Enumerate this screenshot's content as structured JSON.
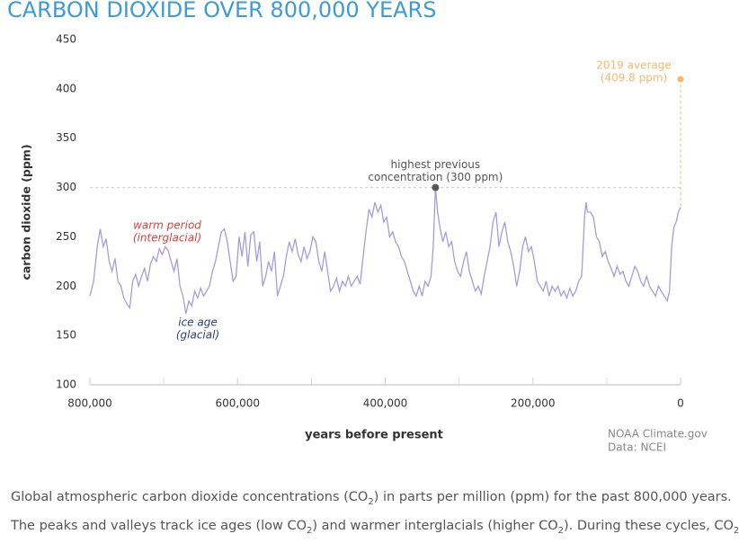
{
  "chart_data": {
    "type": "line",
    "title": "CARBON DIOXIDE OVER 800,000 YEARS",
    "ylabel": "carbon dioxide (ppm)",
    "xlabel": "years before present",
    "source": [
      "NOAA Climate.gov",
      "Data: NCEI"
    ],
    "xlim": [
      800000,
      0
    ],
    "xticks": [
      {
        "value": 800000,
        "label": "800,000"
      },
      {
        "value": 600000,
        "label": "600,000"
      },
      {
        "value": 400000,
        "label": "400,000"
      },
      {
        "value": 200000,
        "label": "200,000"
      },
      0
    ],
    "xminorticks": [
      700000,
      500000,
      300000,
      100000
    ],
    "ylim": [
      100,
      450
    ],
    "yticks": [
      100,
      150,
      200,
      250,
      300,
      350,
      400,
      450
    ],
    "reference_line": 300,
    "x": [
      800000,
      795000,
      790000,
      786000,
      782000,
      778000,
      774000,
      770000,
      766000,
      762000,
      758000,
      754000,
      750000,
      746000,
      742000,
      738000,
      734000,
      730000,
      726000,
      722000,
      718000,
      714000,
      710000,
      706000,
      702000,
      698000,
      694000,
      690000,
      686000,
      682000,
      678000,
      674000,
      670000,
      666000,
      662000,
      658000,
      654000,
      650000,
      646000,
      642000,
      638000,
      634000,
      630000,
      626000,
      622000,
      618000,
      614000,
      610000,
      606000,
      602000,
      598000,
      594000,
      590000,
      586000,
      582000,
      578000,
      574000,
      570000,
      566000,
      562000,
      558000,
      554000,
      550000,
      546000,
      542000,
      538000,
      534000,
      530000,
      526000,
      522000,
      518000,
      514000,
      510000,
      506000,
      502000,
      498000,
      494000,
      490000,
      486000,
      482000,
      478000,
      474000,
      470000,
      466000,
      462000,
      458000,
      454000,
      450000,
      446000,
      442000,
      438000,
      434000,
      430000,
      426000,
      422000,
      418000,
      414000,
      410000,
      406000,
      402000,
      398000,
      394000,
      390000,
      386000,
      382000,
      378000,
      374000,
      370000,
      366000,
      362000,
      358000,
      354000,
      350000,
      346000,
      342000,
      338000,
      335000,
      332000,
      329000,
      326000,
      322000,
      318000,
      314000,
      310000,
      306000,
      302000,
      298000,
      294000,
      290000,
      286000,
      282000,
      278000,
      274000,
      270000,
      266000,
      262000,
      258000,
      254000,
      250000,
      246000,
      242000,
      238000,
      234000,
      230000,
      226000,
      222000,
      218000,
      214000,
      210000,
      206000,
      202000,
      198000,
      194000,
      190000,
      186000,
      182000,
      178000,
      174000,
      170000,
      166000,
      162000,
      158000,
      154000,
      150000,
      146000,
      142000,
      138000,
      134000,
      130000,
      128000,
      126000,
      122000,
      118000,
      114000,
      110000,
      106000,
      102000,
      98000,
      94000,
      90000,
      86000,
      82000,
      78000,
      74000,
      70000,
      66000,
      62000,
      58000,
      54000,
      50000,
      46000,
      42000,
      38000,
      34000,
      30000,
      26000,
      22000,
      18000,
      15000,
      12000,
      9000,
      6000,
      3000,
      0
    ],
    "series": [
      {
        "color": "#a49ddb",
        "values": [
          190,
          205,
          240,
          258,
          240,
          248,
          225,
          215,
          228,
          205,
          200,
          188,
          182,
          178,
          205,
          212,
          200,
          210,
          218,
          205,
          222,
          230,
          225,
          238,
          232,
          240,
          236,
          225,
          215,
          228,
          200,
          190,
          172,
          185,
          180,
          195,
          188,
          198,
          190,
          195,
          200,
          215,
          225,
          240,
          255,
          258,
          245,
          225,
          205,
          210,
          250,
          230,
          255,
          220,
          252,
          255,
          225,
          245,
          200,
          210,
          225,
          215,
          235,
          190,
          200,
          210,
          230,
          245,
          235,
          248,
          232,
          225,
          240,
          228,
          235,
          250,
          245,
          225,
          215,
          235,
          215,
          195,
          200,
          208,
          195,
          205,
          200,
          210,
          200,
          205,
          210,
          202,
          230,
          255,
          278,
          270,
          285,
          275,
          282,
          265,
          270,
          250,
          255,
          245,
          240,
          230,
          225,
          215,
          205,
          195,
          190,
          200,
          190,
          205,
          200,
          210,
          240,
          300,
          275,
          260,
          245,
          255,
          240,
          245,
          225,
          215,
          210,
          225,
          235,
          215,
          205,
          195,
          200,
          192,
          210,
          225,
          240,
          265,
          275,
          240,
          255,
          265,
          245,
          235,
          220,
          200,
          215,
          240,
          250,
          235,
          240,
          225,
          205,
          200,
          195,
          205,
          190,
          200,
          195,
          200,
          190,
          195,
          188,
          198,
          190,
          195,
          205,
          210,
          270,
          285,
          275,
          275,
          270,
          250,
          245,
          230,
          235,
          225,
          218,
          210,
          220,
          212,
          215,
          205,
          200,
          210,
          220,
          215,
          205,
          200,
          210,
          200,
          195,
          190,
          200,
          195,
          190,
          185,
          195,
          240,
          260,
          265,
          275,
          280
        ]
      }
    ],
    "annotations": [
      {
        "lines": [
          "2019 average",
          "(409.8 ppm)"
        ],
        "x": 0,
        "y": 409.8,
        "color": "#f5b870"
      },
      {
        "lines": [
          "highest previous",
          "concentration (300 ppm)"
        ],
        "x": 332000,
        "y": 300,
        "color": "#555555"
      },
      {
        "lines": [
          "warm period",
          "(interglacial)"
        ],
        "color": "#d9423f"
      },
      {
        "lines": [
          "ice age",
          "(glacial)"
        ],
        "color": "#2d3f7a"
      }
    ]
  },
  "caption": [
    [
      "Global atmospheric carbon dioxide concentrations (CO",
      "2",
      ") in parts per million (ppm) for the past 800,000 years."
    ],
    [
      "The peaks and valleys track ice ages (low CO",
      "2",
      ") and warmer interglacials (higher CO",
      "2",
      "). During these cycles, CO",
      "2"
    ]
  ]
}
